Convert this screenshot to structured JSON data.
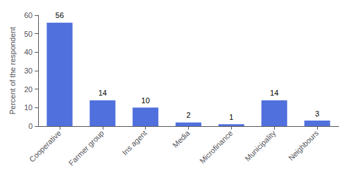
{
  "chart_data": {
    "type": "bar",
    "categories": [
      "Cooperative",
      "Farmer group",
      "Ins agent",
      "Media",
      "Microfinance",
      "Municipality",
      "Neighbours"
    ],
    "values": [
      56,
      14,
      10,
      2,
      1,
      14,
      3
    ],
    "ylabel": "Percent of the respondent",
    "ylim": [
      0,
      60
    ],
    "yticks": [
      0,
      10,
      20,
      30,
      40,
      50,
      60
    ],
    "grid": false,
    "data_labels": true
  }
}
